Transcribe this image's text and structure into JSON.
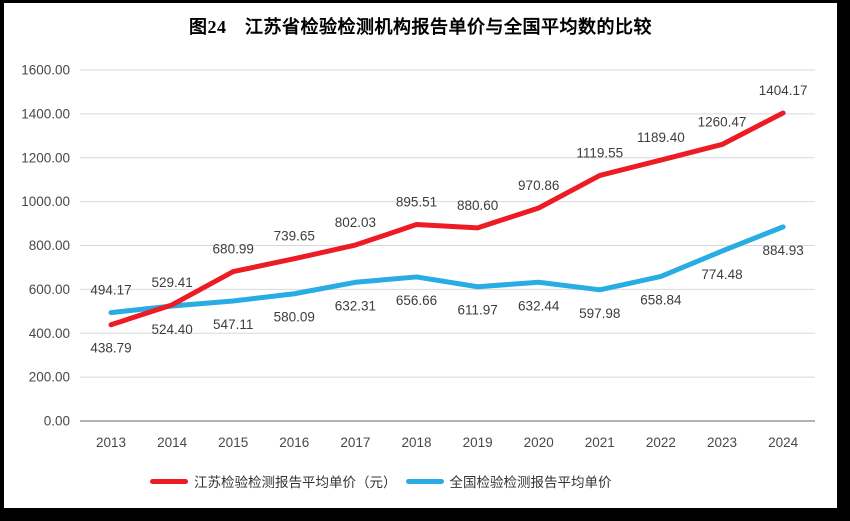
{
  "frame": {
    "border_color": "#000000",
    "page_background": "#ffffff"
  },
  "chart_data": {
    "type": "line",
    "title": "图24　江苏省检验检测机构报告单价与全国平均数的比较",
    "categories": [
      "2013",
      "2014",
      "2015",
      "2016",
      "2017",
      "2018",
      "2019",
      "2020",
      "2021",
      "2022",
      "2023",
      "2024"
    ],
    "series": [
      {
        "name": "江苏检验检测报告平均单价（元）",
        "color": "#ed1c24",
        "values": [
          438.79,
          529.41,
          680.99,
          739.65,
          802.03,
          895.51,
          880.6,
          970.86,
          1119.55,
          1189.4,
          1260.47,
          1404.17
        ],
        "label_sides": [
          "below",
          "above",
          "above",
          "above",
          "above",
          "above",
          "above",
          "above",
          "above",
          "above",
          "above",
          "above"
        ]
      },
      {
        "name": "全国检验检测报告平均单价",
        "color": "#29ace3",
        "values": [
          494.17,
          524.4,
          547.11,
          580.09,
          632.31,
          656.66,
          611.97,
          632.44,
          597.98,
          658.84,
          774.48,
          884.93
        ],
        "label_sides": [
          "above",
          "below",
          "below",
          "below",
          "below",
          "below",
          "below",
          "below",
          "below",
          "below",
          "below",
          "below"
        ]
      }
    ],
    "xlabel": "",
    "ylabel": "",
    "ylim": [
      0,
      1600
    ],
    "ytick_values": [
      0,
      200,
      400,
      600,
      800,
      1000,
      1200,
      1400,
      1600
    ],
    "ytick_labels": [
      "0.00",
      "200.00",
      "400.00",
      "600.00",
      "800.00",
      "1000.00",
      "1200.00",
      "1400.00",
      "1600.00"
    ],
    "grid": "horizontal",
    "legend_position": "bottom",
    "colors": {
      "grid_line": "#d9d9d9",
      "zero_line": "#a6a6a6",
      "tick_label": "#484848",
      "data_label": "#3d3d3d",
      "title": "#000000"
    }
  }
}
